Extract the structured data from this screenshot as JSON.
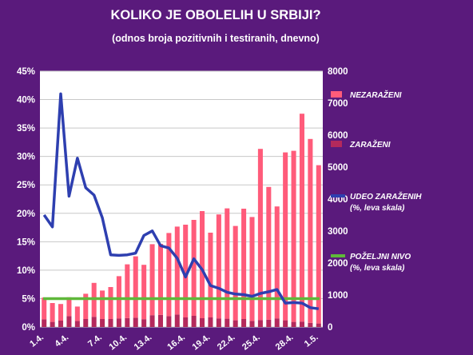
{
  "chart_data": {
    "type": "bar",
    "title": "KOLIKO JE OBOLELIH U SRBIJI?",
    "subtitle": "(odnos broja pozitivnih i testiranih, dnevno)",
    "x_tick_labels": [
      "1.4.",
      "4.4.",
      "7.4.",
      "10.4.",
      "13.4.",
      "16.4.",
      "19.4.",
      "22.4.",
      "25.4.",
      "28.4.",
      "1.5."
    ],
    "left_axis": {
      "ylim": [
        0,
        45
      ],
      "ticks": [
        0,
        5,
        10,
        15,
        20,
        25,
        30,
        35,
        40,
        45
      ],
      "tick_labels": [
        "0%",
        "5%",
        "10%",
        "15%",
        "20%",
        "25%",
        "30%",
        "35%",
        "40%",
        "45%"
      ]
    },
    "right_axis": {
      "ylim": [
        0,
        8000
      ],
      "ticks": [
        0,
        1000,
        2000,
        3000,
        4000,
        5000,
        6000,
        7000,
        8000
      ],
      "tick_labels": [
        "0",
        "1000",
        "2000",
        "3000",
        "4000",
        "5000",
        "6000",
        "7000",
        "8000"
      ]
    },
    "series": [
      {
        "name": "NEZARAŽENI",
        "kind": "bar-stacked",
        "axis": "right",
        "color": "#ff5b7a",
        "values": [
          680,
          590,
          520,
          590,
          450,
          790,
          1060,
          890,
          1000,
          1320,
          1680,
          1920,
          1700,
          2220,
          2220,
          2600,
          2750,
          2900,
          3000,
          3350,
          2650,
          3250,
          3450,
          2950,
          3450,
          3250,
          5350,
          4150,
          3500,
          5250,
          5350,
          6500,
          5750,
          4950
        ]
      },
      {
        "name": "ZARAŽENI",
        "kind": "bar-stacked",
        "axis": "right",
        "color": "#b4295c",
        "values": [
          240,
          160,
          200,
          340,
          190,
          250,
          320,
          250,
          250,
          270,
          280,
          290,
          245,
          370,
          380,
          340,
          390,
          300,
          350,
          275,
          300,
          270,
          260,
          210,
          250,
          190,
          220,
          230,
          270,
          210,
          160,
          170,
          130,
          110
        ]
      },
      {
        "name": "UDEO ZARAŽENIH",
        "name_note": "(%, leva skala)",
        "kind": "line",
        "axis": "left",
        "color": "#2e3fb0",
        "values": [
          19.7,
          17.6,
          41.0,
          23.0,
          29.7,
          24.5,
          23.2,
          19.2,
          12.7,
          12.6,
          12.7,
          13.0,
          16.1,
          16.9,
          14.3,
          13.9,
          12.1,
          8.8,
          12.0,
          10.1,
          7.3,
          6.8,
          6.1,
          5.8,
          5.7,
          5.4,
          5.9,
          6.2,
          6.6,
          4.2,
          4.3,
          4.2,
          3.4,
          3.2
        ]
      },
      {
        "name": "POŽELJNI NIVO",
        "name_note": "(%, leva skala)",
        "kind": "line",
        "axis": "left",
        "color": "#5fb83a",
        "constant": 5
      }
    ],
    "grid": true,
    "legend": "right"
  }
}
